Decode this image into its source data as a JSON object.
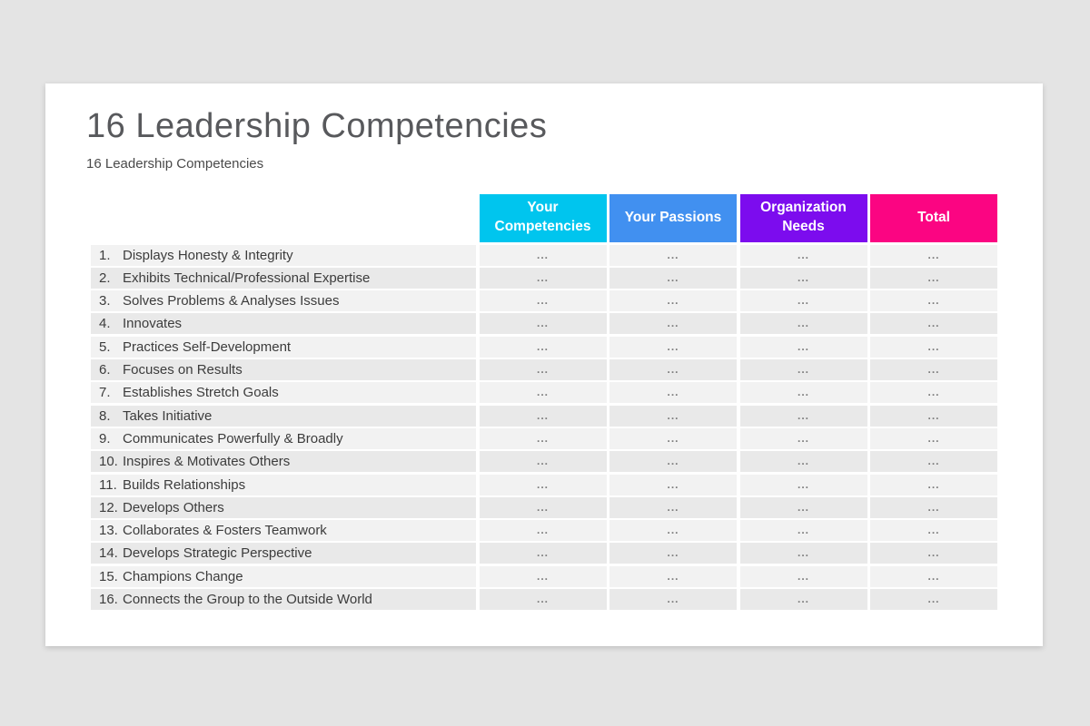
{
  "slide": {
    "title": "16 Leadership Competencies",
    "subtitle": "16 Leadership Competencies"
  },
  "table": {
    "columns": [
      {
        "label": "Your Competencies",
        "color": "#00c5ee"
      },
      {
        "label": "Your Passions",
        "color": "#4190f0"
      },
      {
        "label": "Organization Needs",
        "color": "#7c0cee"
      },
      {
        "label": "Total",
        "color": "#fb0582"
      }
    ],
    "rows": [
      {
        "num": "1.",
        "label": "Displays Honesty & Integrity",
        "values": [
          "...",
          "...",
          "...",
          "..."
        ]
      },
      {
        "num": "2.",
        "label": "Exhibits Technical/Professional Expertise",
        "values": [
          "...",
          "...",
          "...",
          "..."
        ]
      },
      {
        "num": "3.",
        "label": "Solves Problems & Analyses Issues",
        "values": [
          "...",
          "...",
          "...",
          "..."
        ]
      },
      {
        "num": "4.",
        "label": "Innovates",
        "values": [
          "...",
          "...",
          "...",
          "..."
        ]
      },
      {
        "num": "5.",
        "label": "Practices Self-Development",
        "values": [
          "...",
          "...",
          "...",
          "..."
        ]
      },
      {
        "num": "6.",
        "label": "Focuses on Results",
        "values": [
          "...",
          "...",
          "...",
          "..."
        ]
      },
      {
        "num": "7.",
        "label": "Establishes Stretch Goals",
        "values": [
          "...",
          "...",
          "...",
          "..."
        ]
      },
      {
        "num": "8.",
        "label": "Takes Initiative",
        "values": [
          "...",
          "...",
          "...",
          "..."
        ]
      },
      {
        "num": "9.",
        "label": "Communicates Powerfully & Broadly",
        "values": [
          "...",
          "...",
          "...",
          "..."
        ]
      },
      {
        "num": "10.",
        "label": "Inspires & Motivates Others",
        "values": [
          "...",
          "...",
          "...",
          "..."
        ]
      },
      {
        "num": "11.",
        "label": "Builds Relationships",
        "values": [
          "...",
          "...",
          "...",
          "..."
        ]
      },
      {
        "num": "12.",
        "label": "Develops Others",
        "values": [
          "...",
          "...",
          "...",
          "..."
        ]
      },
      {
        "num": "13.",
        "label": "Collaborates & Fosters Teamwork",
        "values": [
          "...",
          "...",
          "...",
          "..."
        ]
      },
      {
        "num": "14.",
        "label": "Develops Strategic Perspective",
        "values": [
          "...",
          "...",
          "...",
          "..."
        ]
      },
      {
        "num": "15.",
        "label": "Champions Change",
        "values": [
          "...",
          "...",
          "...",
          "..."
        ]
      },
      {
        "num": "16.",
        "label": "Connects the Group to the Outside World",
        "values": [
          "...",
          "...",
          "...",
          "..."
        ]
      }
    ]
  }
}
